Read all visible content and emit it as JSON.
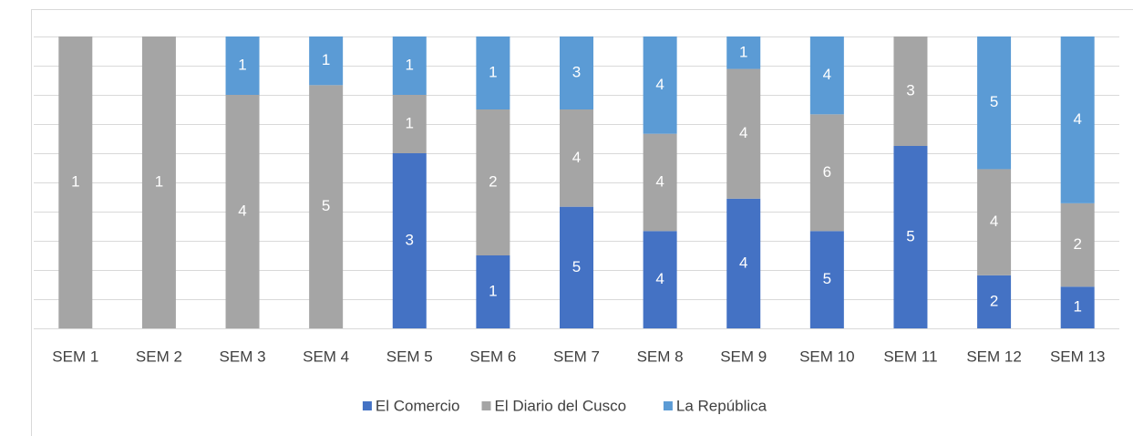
{
  "chart_data": {
    "type": "bar",
    "stacked": "percent",
    "categories": [
      "SEM 1",
      "SEM 2",
      "SEM 3",
      "SEM 4",
      "SEM 5",
      "SEM 6",
      "SEM 7",
      "SEM 8",
      "SEM 9",
      "SEM 10",
      "SEM 11",
      "SEM 12",
      "SEM 13"
    ],
    "series": [
      {
        "name": "El Comercio",
        "color": "#4472c4",
        "values": [
          0,
          0,
          0,
          0,
          3,
          1,
          5,
          4,
          4,
          5,
          5,
          2,
          1
        ]
      },
      {
        "name": "El Diario del Cusco",
        "color": "#a5a5a5",
        "values": [
          1,
          1,
          4,
          5,
          1,
          2,
          4,
          4,
          4,
          6,
          3,
          4,
          2
        ]
      },
      {
        "name": "La República",
        "color": "#5b9bd5",
        "values": [
          0,
          0,
          1,
          1,
          1,
          1,
          3,
          4,
          1,
          4,
          0,
          5,
          4
        ]
      }
    ],
    "ylim": [
      0,
      100
    ],
    "yticks": [
      0,
      10,
      20,
      30,
      40,
      50,
      60,
      70,
      80,
      90,
      100
    ],
    "grid": true,
    "legend": "bottom"
  }
}
